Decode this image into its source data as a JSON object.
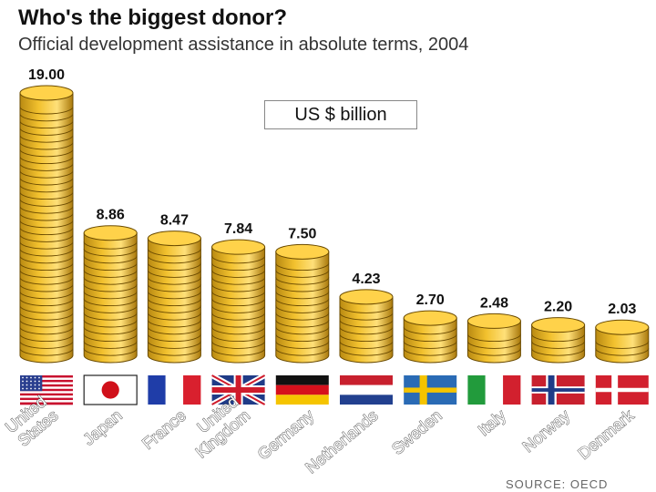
{
  "title": "Who's the biggest donor?",
  "subtitle": "Official development assistance in absolute terms, 2004",
  "unit_label": "US $ billion",
  "source": "SOURCE: OECD",
  "colors": {
    "coin_fill": "#f2c12e",
    "coin_top": "#ffd24a",
    "coin_edge": "#6b4b00",
    "text": "#111111"
  },
  "chart_data": {
    "type": "bar",
    "title": "Who's the biggest donor?",
    "subtitle": "Official development assistance in absolute terms, 2004",
    "ylabel": "US $ billion",
    "categories": [
      "United States",
      "Japan",
      "France",
      "United Kingdom",
      "Germany",
      "Netherlands",
      "Sweden",
      "Italy",
      "Norway",
      "Denmark"
    ],
    "category_label_lines": [
      [
        "United",
        "States"
      ],
      [
        "Japan"
      ],
      [
        "France"
      ],
      [
        "United",
        "Kingdom"
      ],
      [
        "Germany"
      ],
      [
        "Netherlands"
      ],
      [
        "Sweden"
      ],
      [
        "Italy"
      ],
      [
        "Norway"
      ],
      [
        "Denmark"
      ]
    ],
    "values": [
      19.0,
      8.86,
      8.47,
      7.84,
      7.5,
      4.23,
      2.7,
      2.48,
      2.2,
      2.03
    ],
    "value_labels": [
      "19.00",
      "8.86",
      "8.47",
      "7.84",
      "7.50",
      "4.23",
      "2.70",
      "2.48",
      "2.20",
      "2.03"
    ],
    "flags": [
      "flag-united-states",
      "flag-japan",
      "flag-france",
      "flag-united-kingdom",
      "flag-germany",
      "flag-netherlands",
      "flag-sweden",
      "flag-italy",
      "flag-norway",
      "flag-denmark"
    ],
    "ylim": [
      0,
      19
    ],
    "grid": false,
    "legend": "none"
  }
}
